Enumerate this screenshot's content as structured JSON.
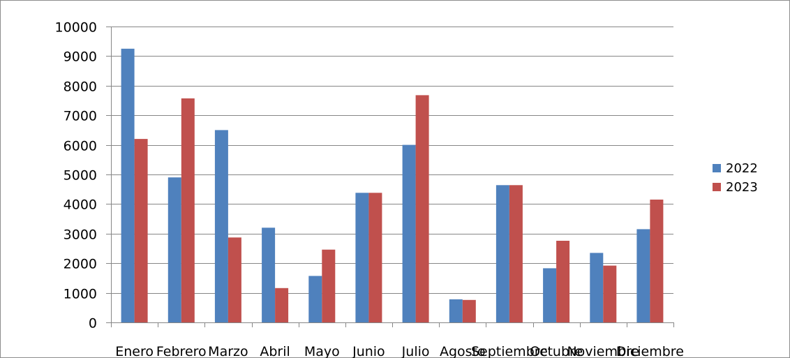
{
  "chart_data": {
    "type": "bar",
    "title": "",
    "xlabel": "",
    "ylabel": "",
    "categories": [
      "Enero",
      "Febrero",
      "Marzo",
      "Abril",
      "Mayo",
      "Junio",
      "Julio",
      "Agosto",
      "Septiembre",
      "Octubre",
      "Noviembre",
      "Diciembre"
    ],
    "series": [
      {
        "name": "2022",
        "color": "#4F81BD",
        "values": [
          9250,
          4900,
          6500,
          3200,
          1570,
          4380,
          6000,
          780,
          4640,
          1830,
          2350,
          3150
        ]
      },
      {
        "name": "2023",
        "color": "#C0504D",
        "values": [
          6200,
          7570,
          2870,
          1160,
          2460,
          4380,
          7680,
          760,
          4640,
          2760,
          1920,
          4150
        ]
      }
    ],
    "ylim": [
      0,
      10000
    ],
    "yticks": [
      "0",
      "1000",
      "2000",
      "3000",
      "4000",
      "5000",
      "6000",
      "7000",
      "8000",
      "9000",
      "10000"
    ],
    "grid": true,
    "legend": "right"
  }
}
